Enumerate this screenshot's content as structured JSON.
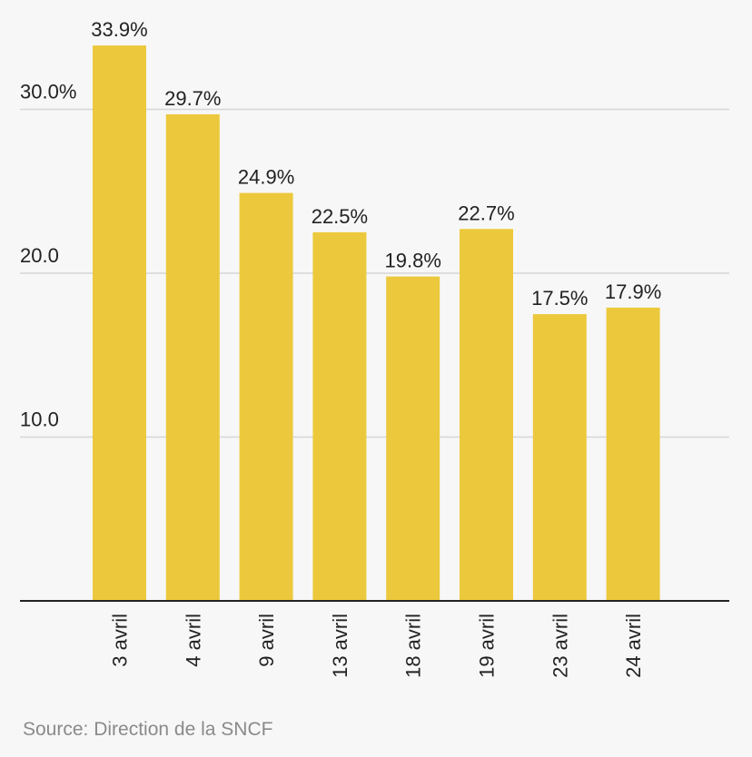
{
  "chart_data": {
    "type": "bar",
    "categories": [
      "3 avril",
      "4 avril",
      "9 avril",
      "13 avril",
      "18 avril",
      "19 avril",
      "23 avril",
      "24 avril"
    ],
    "values": [
      33.9,
      29.7,
      24.9,
      22.5,
      19.8,
      22.7,
      17.5,
      17.9
    ],
    "value_labels": [
      "33.9%",
      "29.7%",
      "24.9%",
      "22.5%",
      "19.8%",
      "22.7%",
      "17.5%",
      "17.9%"
    ],
    "y_ticks": [
      10,
      20,
      30
    ],
    "y_tick_labels": [
      "10.0",
      "20.0",
      "30.0%"
    ],
    "ylim": [
      0,
      36
    ],
    "title": "",
    "xlabel": "",
    "ylabel": "",
    "grid": true,
    "legend": "none",
    "bar_color": "#ecc93c",
    "gridline_color": "#d6d6d6",
    "axis_color": "#222222",
    "text_color": "#222222"
  },
  "footer": {
    "source": "Source: Direction de la SNCF"
  }
}
